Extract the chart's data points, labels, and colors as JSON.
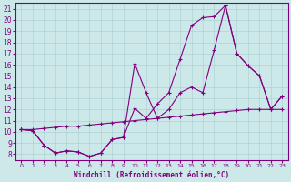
{
  "xlabel": "Windchill (Refroidissement éolien,°C)",
  "background_color": "#cce8e8",
  "line_color": "#800080",
  "xlim": [
    -0.5,
    23.5
  ],
  "ylim": [
    7.5,
    21.5
  ],
  "xticks": [
    0,
    1,
    2,
    3,
    4,
    5,
    6,
    7,
    8,
    9,
    10,
    11,
    12,
    13,
    14,
    15,
    16,
    17,
    18,
    19,
    20,
    21,
    22,
    23
  ],
  "yticks": [
    8,
    9,
    10,
    11,
    12,
    13,
    14,
    15,
    16,
    17,
    18,
    19,
    20,
    21
  ],
  "series1_x": [
    0,
    1,
    2,
    3,
    4,
    5,
    6,
    7,
    8,
    9,
    10,
    11,
    12,
    13,
    14,
    15,
    16,
    17,
    18,
    19,
    20,
    21,
    22,
    23
  ],
  "series1_y": [
    10.2,
    10.1,
    8.8,
    8.1,
    8.3,
    8.2,
    7.8,
    8.1,
    9.3,
    9.5,
    16.1,
    13.5,
    11.2,
    12.0,
    13.5,
    14.0,
    13.5,
    17.3,
    21.3,
    17.0,
    15.9,
    15.0,
    12.0,
    13.2
  ],
  "series2_x": [
    0,
    1,
    2,
    3,
    4,
    5,
    6,
    7,
    8,
    9,
    10,
    11,
    12,
    13,
    14,
    15,
    16,
    17,
    18,
    19,
    20,
    21,
    22,
    23
  ],
  "series2_y": [
    10.2,
    10.1,
    8.8,
    8.1,
    8.3,
    8.2,
    7.8,
    8.1,
    9.3,
    9.5,
    12.1,
    11.2,
    12.5,
    13.5,
    16.5,
    19.5,
    20.2,
    20.3,
    21.3,
    17.0,
    15.9,
    15.0,
    12.0,
    13.2
  ],
  "series3_x": [
    0,
    1,
    2,
    3,
    4,
    5,
    6,
    7,
    8,
    9,
    10,
    11,
    12,
    13,
    14,
    15,
    16,
    17,
    18,
    19,
    20,
    21,
    22,
    23
  ],
  "series3_y": [
    10.2,
    10.2,
    10.3,
    10.4,
    10.5,
    10.5,
    10.6,
    10.7,
    10.8,
    10.9,
    11.0,
    11.1,
    11.2,
    11.3,
    11.4,
    11.5,
    11.6,
    11.7,
    11.8,
    11.9,
    12.0,
    12.0,
    12.0,
    12.0
  ]
}
